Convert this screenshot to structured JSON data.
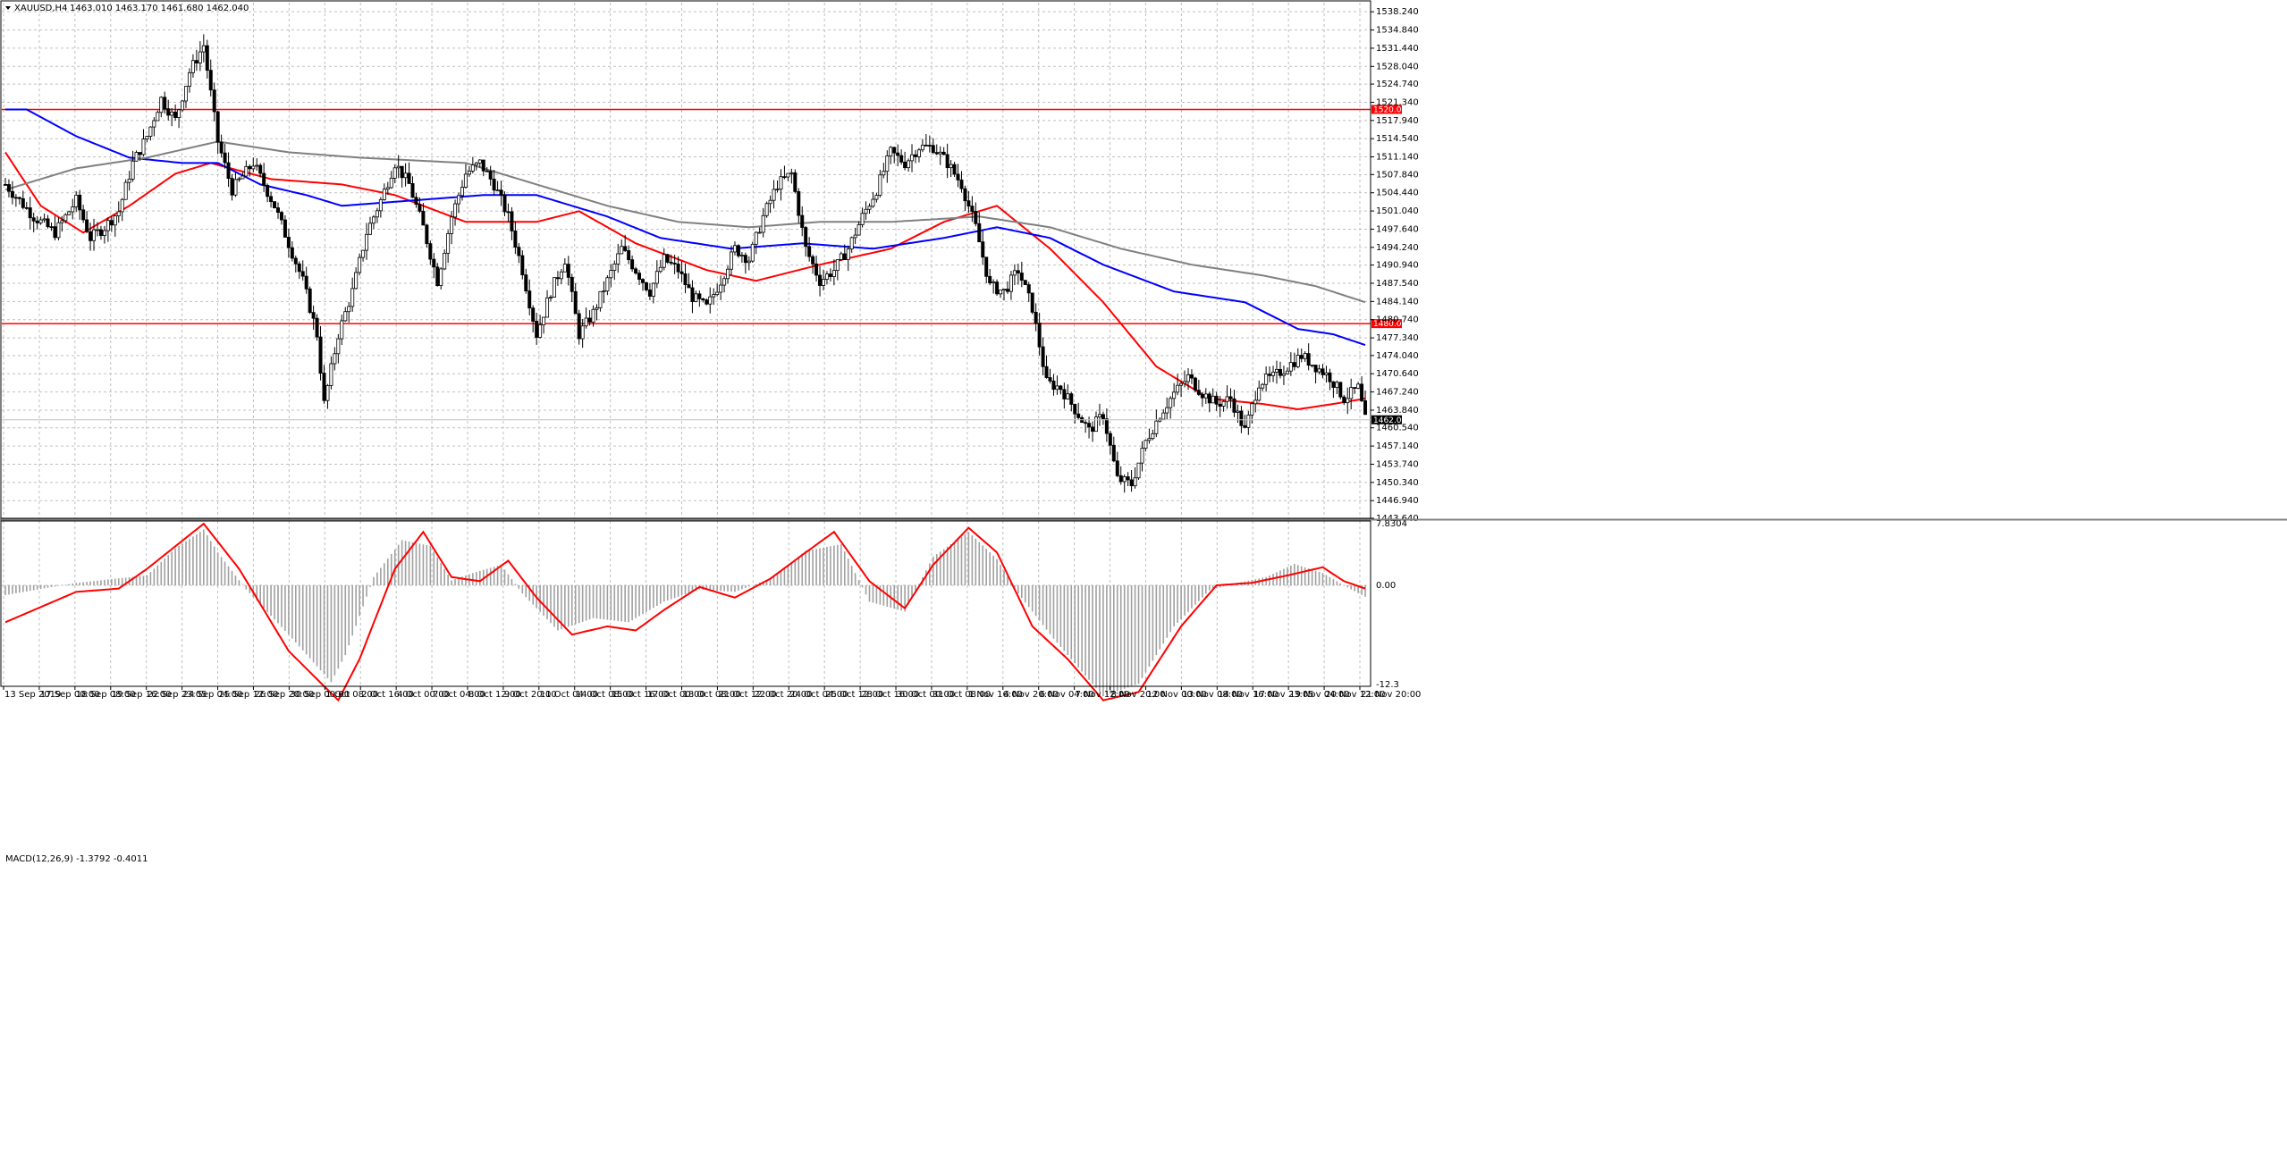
{
  "colors": {
    "background": "#ffffff",
    "grid": "#c0c0c0",
    "candle": "#000000",
    "ma_fast": "#ff0000",
    "ma_mid": "#0000ff",
    "ma_slow": "#808080",
    "level_line": "#ff0000",
    "macd_hist": "#a0a0a0",
    "macd_signal": "#ff0000",
    "price_tag_bg": "#000000",
    "level_tag_bg": "#ff0000"
  },
  "main_panel": {
    "symbol_label": "XAUUSD,H4",
    "ohlc_label": "1463.010 1463.170 1461.680 1462.040",
    "current_price_label": "1462.040",
    "current_price": 1462.04
  },
  "macd_panel": {
    "label": "MACD(12,26,9) -1.3792 -0.4011",
    "axis_labels": [
      "7.8304",
      "0.00",
      "-12.3"
    ]
  },
  "chart_data": [
    {
      "type": "candlestick",
      "ylim": [
        1443.64,
        1539.94
      ],
      "grid": true,
      "y_ticks": [
        "1538.240",
        "1534.840",
        "1531.440",
        "1528.040",
        "1524.740",
        "1521.340",
        "1517.940",
        "1514.540",
        "1511.140",
        "1507.840",
        "1504.440",
        "1501.040",
        "1497.640",
        "1494.240",
        "1490.940",
        "1487.540",
        "1484.140",
        "1480.740",
        "1477.340",
        "1474.040",
        "1470.640",
        "1467.240",
        "1463.840",
        "1460.540",
        "1457.140",
        "1453.740",
        "1450.340",
        "1446.940",
        "1443.640"
      ],
      "x_ticks": [
        "13 Sep 2019",
        "17 Sep 00:00",
        "18 Sep 08:00",
        "19 Sep 16:00",
        "22 Sep 23:05",
        "24 Sep 04:00",
        "25 Sep 12:00",
        "26 Sep 20:00",
        "30 Sep 00:00",
        "1 Oct 08:00",
        "2 Oct 16:00",
        "4 Oct 00:00",
        "7 Oct 04:00",
        "8 Oct 12:00",
        "9 Oct 20:00",
        "11 Oct 04:00",
        "14 Oct 08:00",
        "15 Oct 16:00",
        "17 Oct 00:00",
        "18 Oct 08:00",
        "21 Oct 12:00",
        "22 Oct 20:00",
        "24 Oct 04:00",
        "25 Oct 12:00",
        "28 Oct 16:00",
        "30 Oct 00:00",
        "31 Oct 08:00",
        "1 Nov 16:00",
        "4 Nov 20:00",
        "6 Nov 04:00",
        "7 Nov 12:00",
        "8 Nov 20:00",
        "12 Nov 00:00",
        "13 Nov 08:00",
        "14 Nov 16:00",
        "17 Nov 23:05",
        "19 Nov 04:00",
        "20 Nov 12:00",
        "21 Nov 20:00"
      ],
      "horizontal_levels": [
        {
          "value": 1520.0,
          "label": "1520.000"
        },
        {
          "value": 1480.0,
          "label": "1480.000"
        }
      ],
      "price_keypoints": [
        [
          0,
          1506
        ],
        [
          8,
          1500
        ],
        [
          14,
          1497
        ],
        [
          20,
          1503
        ],
        [
          24,
          1496
        ],
        [
          28,
          1498
        ],
        [
          32,
          1501
        ],
        [
          36,
          1510
        ],
        [
          40,
          1515
        ],
        [
          44,
          1522
        ],
        [
          48,
          1518
        ],
        [
          52,
          1527
        ],
        [
          56,
          1532
        ],
        [
          60,
          1514
        ],
        [
          64,
          1505
        ],
        [
          70,
          1510
        ],
        [
          76,
          1502
        ],
        [
          80,
          1495
        ],
        [
          84,
          1488
        ],
        [
          88,
          1478
        ],
        [
          90,
          1465
        ],
        [
          94,
          1478
        ],
        [
          98,
          1486
        ],
        [
          102,
          1497
        ],
        [
          106,
          1503
        ],
        [
          110,
          1510
        ],
        [
          114,
          1506
        ],
        [
          118,
          1498
        ],
        [
          122,
          1488
        ],
        [
          126,
          1500
        ],
        [
          130,
          1508
        ],
        [
          134,
          1510
        ],
        [
          138,
          1506
        ],
        [
          142,
          1500
        ],
        [
          146,
          1490
        ],
        [
          150,
          1478
        ],
        [
          154,
          1486
        ],
        [
          158,
          1492
        ],
        [
          162,
          1478
        ],
        [
          166,
          1482
        ],
        [
          170,
          1488
        ],
        [
          174,
          1494
        ],
        [
          178,
          1490
        ],
        [
          182,
          1486
        ],
        [
          186,
          1492
        ],
        [
          190,
          1490
        ],
        [
          194,
          1485
        ],
        [
          198,
          1483
        ],
        [
          202,
          1488
        ],
        [
          206,
          1494
        ],
        [
          210,
          1492
        ],
        [
          214,
          1500
        ],
        [
          218,
          1506
        ],
        [
          222,
          1508
        ],
        [
          226,
          1494
        ],
        [
          230,
          1488
        ],
        [
          234,
          1490
        ],
        [
          238,
          1494
        ],
        [
          242,
          1500
        ],
        [
          246,
          1505
        ],
        [
          250,
          1512
        ],
        [
          254,
          1510
        ],
        [
          258,
          1513
        ],
        [
          262,
          1513
        ],
        [
          266,
          1510
        ],
        [
          270,
          1506
        ],
        [
          274,
          1498
        ],
        [
          278,
          1487
        ],
        [
          282,
          1486
        ],
        [
          286,
          1490
        ],
        [
          290,
          1483
        ],
        [
          294,
          1469
        ],
        [
          298,
          1468
        ],
        [
          302,
          1464
        ],
        [
          306,
          1460
        ],
        [
          310,
          1463
        ],
        [
          314,
          1451
        ],
        [
          318,
          1450
        ],
        [
          322,
          1458
        ],
        [
          326,
          1463
        ],
        [
          330,
          1467
        ],
        [
          334,
          1470
        ],
        [
          338,
          1467
        ],
        [
          342,
          1465
        ],
        [
          346,
          1466
        ],
        [
          350,
          1460
        ],
        [
          354,
          1469
        ],
        [
          358,
          1470
        ],
        [
          362,
          1472
        ],
        [
          366,
          1474
        ],
        [
          370,
          1472
        ],
        [
          374,
          1470
        ],
        [
          378,
          1466
        ],
        [
          382,
          1468
        ],
        [
          384,
          1462
        ]
      ],
      "ma_series": [
        {
          "key": "ma_fast",
          "points": [
            [
              0,
              1512
            ],
            [
              10,
              1502
            ],
            [
              22,
              1497
            ],
            [
              35,
              1502
            ],
            [
              48,
              1508
            ],
            [
              58,
              1510
            ],
            [
              75,
              1507
            ],
            [
              95,
              1506
            ],
            [
              110,
              1504
            ],
            [
              130,
              1499
            ],
            [
              150,
              1499
            ],
            [
              162,
              1501
            ],
            [
              178,
              1495
            ],
            [
              198,
              1490
            ],
            [
              212,
              1488
            ],
            [
              230,
              1491
            ],
            [
              250,
              1494
            ],
            [
              265,
              1499
            ],
            [
              280,
              1502
            ],
            [
              295,
              1494
            ],
            [
              310,
              1484
            ],
            [
              325,
              1472
            ],
            [
              340,
              1466
            ],
            [
              355,
              1465
            ],
            [
              365,
              1464
            ],
            [
              375,
              1465
            ],
            [
              384,
              1466
            ]
          ]
        },
        {
          "key": "ma_mid",
          "points": [
            [
              0,
              1520
            ],
            [
              6,
              1520
            ],
            [
              20,
              1515
            ],
            [
              35,
              1511
            ],
            [
              50,
              1510
            ],
            [
              60,
              1510
            ],
            [
              72,
              1506
            ],
            [
              85,
              1504
            ],
            [
              95,
              1502
            ],
            [
              115,
              1503
            ],
            [
              135,
              1504
            ],
            [
              150,
              1504
            ],
            [
              170,
              1500
            ],
            [
              185,
              1496
            ],
            [
              205,
              1494
            ],
            [
              225,
              1495
            ],
            [
              245,
              1494
            ],
            [
              265,
              1496
            ],
            [
              280,
              1498
            ],
            [
              295,
              1496
            ],
            [
              310,
              1491
            ],
            [
              330,
              1486
            ],
            [
              350,
              1484
            ],
            [
              365,
              1479
            ],
            [
              375,
              1478
            ],
            [
              384,
              1476
            ]
          ]
        },
        {
          "key": "ma_slow",
          "points": [
            [
              0,
              1505
            ],
            [
              20,
              1509
            ],
            [
              40,
              1511
            ],
            [
              60,
              1514
            ],
            [
              80,
              1512
            ],
            [
              100,
              1511
            ],
            [
              130,
              1510
            ],
            [
              150,
              1506
            ],
            [
              170,
              1502
            ],
            [
              190,
              1499
            ],
            [
              210,
              1498
            ],
            [
              230,
              1499
            ],
            [
              250,
              1499
            ],
            [
              275,
              1500
            ],
            [
              295,
              1498
            ],
            [
              315,
              1494
            ],
            [
              335,
              1491
            ],
            [
              355,
              1489
            ],
            [
              370,
              1487
            ],
            [
              384,
              1484
            ]
          ]
        }
      ]
    },
    {
      "type": "histogram+line",
      "ylim": [
        -12.3,
        7.8304
      ],
      "histogram_keypoints": [
        [
          0,
          -1.2
        ],
        [
          20,
          0.3
        ],
        [
          40,
          1.2
        ],
        [
          48,
          4.5
        ],
        [
          56,
          6.8
        ],
        [
          60,
          4.0
        ],
        [
          68,
          -0.5
        ],
        [
          80,
          -6.0
        ],
        [
          92,
          -11.8
        ],
        [
          96,
          -8.5
        ],
        [
          104,
          1.0
        ],
        [
          112,
          5.5
        ],
        [
          120,
          4.8
        ],
        [
          126,
          0.6
        ],
        [
          132,
          1.5
        ],
        [
          140,
          2.5
        ],
        [
          146,
          -1.0
        ],
        [
          156,
          -5.5
        ],
        [
          166,
          -4.0
        ],
        [
          176,
          -4.5
        ],
        [
          186,
          -2.0
        ],
        [
          196,
          -0.5
        ],
        [
          206,
          -0.8
        ],
        [
          216,
          0.8
        ],
        [
          226,
          4.2
        ],
        [
          236,
          5.0
        ],
        [
          244,
          -2.0
        ],
        [
          254,
          -3.2
        ],
        [
          262,
          3.5
        ],
        [
          272,
          6.5
        ],
        [
          280,
          3.2
        ],
        [
          286,
          -1.0
        ],
        [
          296,
          -6.5
        ],
        [
          310,
          -13.5
        ],
        [
          320,
          -12.0
        ],
        [
          330,
          -5.0
        ],
        [
          340,
          -0.6
        ],
        [
          348,
          0.3
        ],
        [
          356,
          1.0
        ],
        [
          364,
          2.6
        ],
        [
          372,
          1.5
        ],
        [
          380,
          -0.5
        ],
        [
          384,
          -1.4
        ]
      ],
      "signal_keypoints": [
        [
          0,
          -4.5
        ],
        [
          20,
          -0.8
        ],
        [
          32,
          -0.4
        ],
        [
          40,
          2.0
        ],
        [
          56,
          7.5
        ],
        [
          66,
          2.0
        ],
        [
          80,
          -8.0
        ],
        [
          94,
          -14.0
        ],
        [
          100,
          -9.0
        ],
        [
          110,
          2.0
        ],
        [
          118,
          6.5
        ],
        [
          126,
          1.0
        ],
        [
          134,
          0.5
        ],
        [
          142,
          3.0
        ],
        [
          150,
          -1.5
        ],
        [
          160,
          -6.0
        ],
        [
          170,
          -5.0
        ],
        [
          178,
          -5.5
        ],
        [
          186,
          -3.0
        ],
        [
          196,
          -0.2
        ],
        [
          206,
          -1.5
        ],
        [
          216,
          0.8
        ],
        [
          226,
          4.0
        ],
        [
          234,
          6.5
        ],
        [
          244,
          0.5
        ],
        [
          254,
          -2.8
        ],
        [
          262,
          2.5
        ],
        [
          272,
          7.0
        ],
        [
          280,
          4.0
        ],
        [
          290,
          -5.0
        ],
        [
          300,
          -9.0
        ],
        [
          310,
          -14.0
        ],
        [
          320,
          -13.0
        ],
        [
          332,
          -5.0
        ],
        [
          342,
          0.0
        ],
        [
          352,
          0.3
        ],
        [
          362,
          1.2
        ],
        [
          372,
          2.2
        ],
        [
          378,
          0.5
        ],
        [
          384,
          -0.4
        ]
      ]
    }
  ]
}
